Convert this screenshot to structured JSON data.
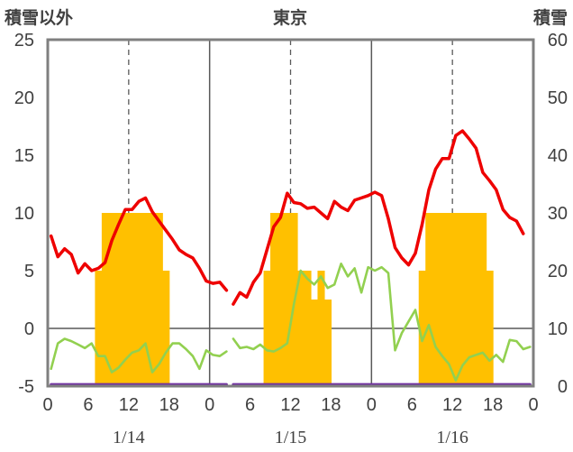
{
  "chart_data": {
    "type": "line",
    "title": "東京",
    "ylabel_left": "積雪以外",
    "ylabel_right": "積雪",
    "x_hour_ticks": [
      "0",
      "6",
      "12",
      "18",
      "0",
      "6",
      "12",
      "18",
      "0",
      "6",
      "12",
      "18",
      "0"
    ],
    "day_labels": [
      "1/14",
      "1/15",
      "1/16"
    ],
    "left_axis": {
      "min": -5,
      "max": 25,
      "ticks": [
        "25",
        "20",
        "15",
        "10",
        "5",
        "0",
        "-5"
      ]
    },
    "right_axis": {
      "min": 0,
      "max": 60,
      "ticks": [
        "60",
        "50",
        "40",
        "30",
        "20",
        "10",
        "0"
      ]
    },
    "grid": "vertical dashed at 12h, solid at day boundaries; horizontal at 0",
    "x_unit": "hours since 1/14 00:00",
    "colors": {
      "temperature": "#ee0000",
      "wind": "#92d050",
      "snow_depth": "#ffc000",
      "precip": "#7030a0",
      "frame": "#7f7f7f"
    },
    "series": [
      {
        "id": "snow_depth",
        "axis": "right",
        "style": "bars",
        "values": [
          [
            7,
            20
          ],
          [
            8,
            30
          ],
          [
            9,
            30
          ],
          [
            10,
            30
          ],
          [
            11,
            30
          ],
          [
            12,
            30
          ],
          [
            13,
            30
          ],
          [
            14,
            30
          ],
          [
            15,
            30
          ],
          [
            16,
            30
          ],
          [
            17,
            20
          ],
          [
            32,
            20
          ],
          [
            33,
            30
          ],
          [
            34,
            30
          ],
          [
            35,
            30
          ],
          [
            36,
            30
          ],
          [
            37,
            20
          ],
          [
            38,
            20
          ],
          [
            39,
            15
          ],
          [
            40,
            20
          ],
          [
            41,
            15
          ],
          [
            55,
            20
          ],
          [
            56,
            30
          ],
          [
            57,
            30
          ],
          [
            58,
            30
          ],
          [
            59,
            30
          ],
          [
            60,
            30
          ],
          [
            61,
            30
          ],
          [
            62,
            30
          ],
          [
            63,
            30
          ],
          [
            64,
            30
          ],
          [
            65,
            20
          ]
        ]
      },
      {
        "id": "temperature",
        "axis": "left",
        "style": "line",
        "segments": [
          [
            [
              0,
              8.0
            ],
            [
              1,
              6.2
            ],
            [
              2,
              6.9
            ],
            [
              3,
              6.4
            ],
            [
              4,
              4.8
            ],
            [
              5,
              5.6
            ],
            [
              6,
              5.0
            ],
            [
              7,
              5.2
            ],
            [
              8,
              5.7
            ],
            [
              9,
              7.6
            ],
            [
              10,
              9.0
            ],
            [
              11,
              10.3
            ],
            [
              12,
              10.3
            ],
            [
              13,
              11.0
            ],
            [
              14,
              11.3
            ],
            [
              15,
              10.1
            ],
            [
              16,
              9.3
            ],
            [
              17,
              8.5
            ],
            [
              18,
              7.7
            ],
            [
              19,
              6.8
            ],
            [
              20,
              6.4
            ],
            [
              21,
              6.1
            ],
            [
              22,
              5.2
            ],
            [
              23,
              4.1
            ],
            [
              24,
              3.9
            ],
            [
              25,
              4.0
            ],
            [
              26,
              3.3
            ]
          ],
          [
            [
              27,
              2.1
            ],
            [
              28,
              3.1
            ],
            [
              29,
              2.7
            ],
            [
              30,
              4.0
            ],
            [
              31,
              4.8
            ],
            [
              32,
              6.8
            ],
            [
              33,
              8.8
            ],
            [
              34,
              9.6
            ],
            [
              35,
              11.7
            ],
            [
              36,
              10.9
            ],
            [
              37,
              10.8
            ],
            [
              38,
              10.4
            ],
            [
              39,
              10.5
            ],
            [
              40,
              10.0
            ],
            [
              41,
              9.5
            ],
            [
              42,
              11.0
            ],
            [
              43,
              10.5
            ],
            [
              44,
              10.2
            ],
            [
              45,
              11.1
            ],
            [
              46,
              11.3
            ],
            [
              47,
              11.5
            ],
            [
              48,
              11.8
            ],
            [
              49,
              11.5
            ],
            [
              50,
              9.5
            ],
            [
              51,
              7.0
            ],
            [
              52,
              6.1
            ],
            [
              53,
              5.5
            ],
            [
              54,
              6.5
            ],
            [
              55,
              9.0
            ],
            [
              56,
              12.0
            ],
            [
              57,
              13.8
            ],
            [
              58,
              14.7
            ],
            [
              59,
              14.7
            ],
            [
              60,
              16.7
            ],
            [
              61,
              17.1
            ],
            [
              62,
              16.4
            ],
            [
              63,
              15.6
            ],
            [
              64,
              13.5
            ],
            [
              65,
              12.8
            ],
            [
              66,
              12.0
            ],
            [
              67,
              10.3
            ],
            [
              68,
              9.6
            ],
            [
              69,
              9.3
            ],
            [
              70,
              8.2
            ]
          ]
        ]
      },
      {
        "id": "wind",
        "axis": "left",
        "style": "line",
        "segments": [
          [
            [
              0,
              -3.5
            ],
            [
              1,
              -1.3
            ],
            [
              2,
              -0.9
            ],
            [
              3,
              -1.1
            ],
            [
              4,
              -1.4
            ],
            [
              5,
              -1.7
            ],
            [
              6,
              -1.3
            ],
            [
              7,
              -2.4
            ],
            [
              8,
              -2.4
            ],
            [
              9,
              -3.8
            ],
            [
              10,
              -3.4
            ],
            [
              11,
              -2.7
            ],
            [
              12,
              -2.1
            ],
            [
              13,
              -1.9
            ],
            [
              14,
              -1.3
            ],
            [
              15,
              -3.8
            ],
            [
              16,
              -3.1
            ],
            [
              17,
              -2.1
            ],
            [
              18,
              -1.3
            ],
            [
              19,
              -1.3
            ],
            [
              20,
              -1.8
            ],
            [
              21,
              -2.4
            ],
            [
              22,
              -3.5
            ],
            [
              23,
              -1.9
            ],
            [
              24,
              -2.3
            ],
            [
              25,
              -2.4
            ],
            [
              26,
              -2.0
            ]
          ],
          [
            [
              27,
              -0.9
            ],
            [
              28,
              -1.7
            ],
            [
              29,
              -1.6
            ],
            [
              30,
              -1.8
            ],
            [
              31,
              -1.4
            ],
            [
              32,
              -1.9
            ],
            [
              33,
              -2.0
            ],
            [
              34,
              -1.7
            ],
            [
              35,
              -1.3
            ],
            [
              36,
              2.1
            ],
            [
              37,
              5.0
            ],
            [
              38,
              4.3
            ],
            [
              39,
              3.8
            ],
            [
              40,
              4.5
            ],
            [
              41,
              3.5
            ],
            [
              42,
              3.8
            ],
            [
              43,
              5.6
            ],
            [
              44,
              4.5
            ],
            [
              45,
              5.2
            ],
            [
              46,
              3.1
            ],
            [
              47,
              5.3
            ],
            [
              48,
              5.0
            ],
            [
              49,
              5.3
            ],
            [
              50,
              4.8
            ],
            [
              51,
              -1.9
            ],
            [
              52,
              -0.4
            ],
            [
              53,
              0.6
            ],
            [
              54,
              1.6
            ],
            [
              55,
              -1.1
            ],
            [
              56,
              0.3
            ],
            [
              57,
              -1.6
            ],
            [
              58,
              -2.4
            ],
            [
              59,
              -3.1
            ],
            [
              60,
              -4.5
            ],
            [
              61,
              -3.2
            ],
            [
              62,
              -2.5
            ],
            [
              63,
              -2.3
            ],
            [
              64,
              -2.1
            ],
            [
              65,
              -2.8
            ],
            [
              66,
              -2.3
            ],
            [
              67,
              -2.9
            ],
            [
              68,
              -1.0
            ],
            [
              69,
              -1.1
            ],
            [
              70,
              -1.8
            ],
            [
              71,
              -1.6
            ]
          ]
        ]
      },
      {
        "id": "precip",
        "axis": "left",
        "style": "line",
        "segments": [
          [
            [
              0,
              -4.85
            ],
            [
              26,
              -4.85
            ]
          ],
          [
            [
              27,
              -4.85
            ],
            [
              71,
              -4.85
            ]
          ]
        ]
      }
    ]
  }
}
